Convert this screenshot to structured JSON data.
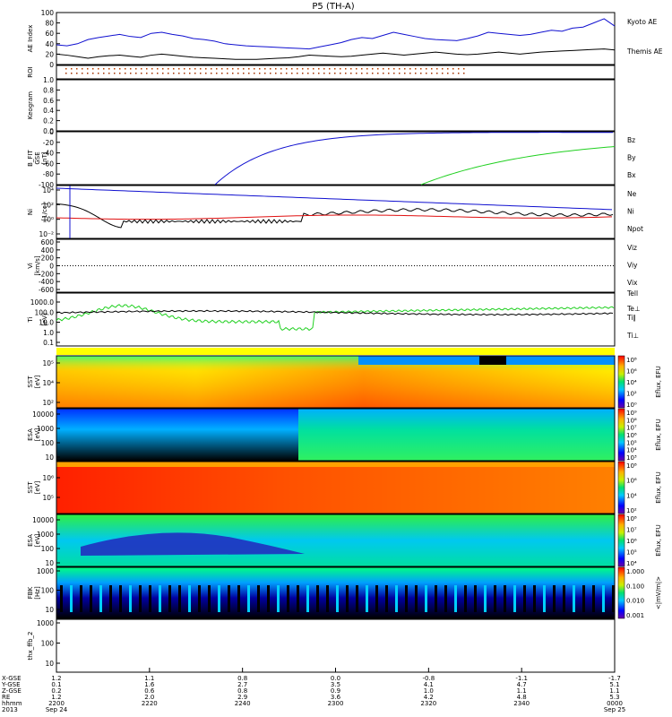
{
  "title": "P5 (TH-A)",
  "colors": {
    "blue": "#1010d0",
    "red": "#e01010",
    "green": "#20d020",
    "black": "#000000"
  },
  "chart_data": {
    "type": "line",
    "time_axis": {
      "ticks": [
        "2200",
        "2220",
        "2240",
        "2300",
        "2320",
        "2340",
        "0000"
      ],
      "labels_left": [
        "X-GSE",
        "Y-GSE",
        "Z-GSE",
        "RE",
        "hhmm",
        "2013"
      ],
      "rows": [
        [
          "1.2",
          "1.1",
          "0.8",
          "0.0",
          "-0.8",
          "-1.1",
          "-1.7"
        ],
        [
          "0.1",
          "1.6",
          "2.7",
          "3.5",
          "4.1",
          "4.7",
          "5.1"
        ],
        [
          "0.2",
          "0.6",
          "0.8",
          "0.9",
          "1.0",
          "1.1",
          "1.1"
        ],
        [
          "1.2",
          "2.0",
          "2.9",
          "3.6",
          "4.2",
          "4.8",
          "5.3"
        ]
      ],
      "date_start": "Sep 24",
      "date_end": "Sep 25"
    },
    "panels": [
      {
        "id": "ae",
        "ylabel": "AE Index",
        "yticks": [
          "100",
          "80",
          "60",
          "40",
          "20",
          "0"
        ],
        "series": [
          {
            "name": "Kyoto AE",
            "color": "#1010d0",
            "values": [
              38,
              36,
              40,
              48,
              52,
              55,
              58,
              54,
              52,
              60,
              62,
              58,
              55,
              50,
              48,
              45,
              40,
              38,
              36,
              35,
              34,
              33,
              32,
              31,
              30,
              34,
              38,
              42,
              48,
              52,
              50,
              56,
              62,
              58,
              54,
              50,
              48,
              47,
              46,
              50,
              55,
              62,
              60,
              58,
              56,
              58,
              62,
              66,
              64,
              70,
              72,
              80,
              88,
              74
            ]
          },
          {
            "name": "Themis AE",
            "color": "#000000",
            "values": [
              20,
              18,
              15,
              12,
              15,
              17,
              18,
              16,
              14,
              18,
              20,
              18,
              16,
              14,
              13,
              12,
              11,
              10,
              10,
              10,
              11,
              12,
              13,
              15,
              18,
              17,
              16,
              15,
              16,
              18,
              20,
              22,
              20,
              18,
              20,
              22,
              24,
              22,
              20,
              19,
              20,
              22,
              24,
              22,
              20,
              22,
              24,
              25,
              26,
              27,
              28,
              29,
              30,
              28
            ]
          }
        ]
      },
      {
        "id": "roi",
        "ylabel": "ROI"
      },
      {
        "id": "keogram",
        "ylabel": "Keogram",
        "yticks": [
          "1.0",
          "0.8",
          "0.6",
          "0.4",
          "0.2",
          "0.0"
        ]
      },
      {
        "id": "bfit",
        "ylabel": "B_FIT",
        "ylabel2": "GSE",
        "ylabel3": "[nT]",
        "yticks": [
          "0",
          "-20",
          "-40",
          "-60",
          "-80",
          "-100"
        ],
        "series": [
          {
            "name": "Bz",
            "color": "#e01010"
          },
          {
            "name": "By",
            "color": "#20d020"
          },
          {
            "name": "Bx",
            "color": "#1010d0"
          }
        ]
      },
      {
        "id": "ni",
        "ylabel": "Ni",
        "ylabel2": "[1/cc]",
        "yticks": [
          "10⁴",
          "10²",
          "10⁰",
          "10⁻²"
        ],
        "series": [
          {
            "name": "Ne",
            "color": "#e01010"
          },
          {
            "name": "Ni",
            "color": "#000000"
          },
          {
            "name": "Npot",
            "color": "#1010d0"
          }
        ]
      },
      {
        "id": "vi",
        "ylabel": "Vi",
        "ylabel2": "[km/s]",
        "yticks": [
          "600",
          "400",
          "200",
          "0",
          "-200",
          "-400",
          "-600"
        ],
        "series": [
          {
            "name": "Viz",
            "color": "#e01010"
          },
          {
            "name": "Viy",
            "color": "#20d020"
          },
          {
            "name": "Vix",
            "color": "#1010d0"
          }
        ]
      },
      {
        "id": "ti",
        "ylabel": "Ti",
        "ylabel2": "[eV]",
        "yticks": [
          "1000.0",
          "100.0",
          "10.0",
          "1.0",
          "0.1"
        ],
        "series": [
          {
            "name": "Tell",
            "color": "#000000"
          },
          {
            "name": "Te⊥",
            "color": "#e01010"
          },
          {
            "name": "Ti∥",
            "color": "#20d020"
          },
          {
            "name": "Ti⊥",
            "color": "#1010d0"
          }
        ]
      },
      {
        "id": "sst_e",
        "ylabel": "SST",
        "ylabel2": "[eV]",
        "yticks": [
          "10⁵",
          "10⁴",
          "10²"
        ],
        "colorbar": [
          "10⁸",
          "10⁶",
          "10⁴",
          "10²",
          "10⁰"
        ],
        "cblabel": "Eflux, EFU"
      },
      {
        "id": "esa_e",
        "ylabel": "ESA",
        "ylabel2": "[eV]",
        "yticks": [
          "10000",
          "1000",
          "100",
          "10"
        ],
        "colorbar": [
          "10⁹",
          "10⁸",
          "10⁷",
          "10⁶",
          "10⁵",
          "10⁴",
          "10³"
        ],
        "cblabel": "Eflux, EFU"
      },
      {
        "id": "sst_i",
        "ylabel": "SST",
        "ylabel2": "[eV]",
        "yticks": [
          "10⁶",
          "10⁵"
        ],
        "colorbar": [
          "10⁸",
          "10⁶",
          "10⁴",
          "10²"
        ],
        "cblabel": "Eflux, EFU"
      },
      {
        "id": "esa_i",
        "ylabel": "ESA",
        "ylabel2": "[eV]",
        "yticks": [
          "10000",
          "1000",
          "100",
          "10"
        ],
        "colorbar": [
          "10⁸",
          "10⁷",
          "10⁶",
          "10⁵",
          "10⁴"
        ],
        "cblabel": "Eflux, EFU"
      },
      {
        "id": "fbk",
        "ylabel": "FBK",
        "ylabel2": "[Hz]",
        "yticks": [
          "1000",
          "100",
          "10"
        ],
        "colorbar": [
          "1.000",
          "0.100",
          "0.010",
          "0.001"
        ],
        "cblabel": "<|mV/m|>"
      },
      {
        "id": "ffb",
        "ylabel": "thx_ffb_2",
        "yticks": [
          "1000",
          "100",
          "10"
        ]
      }
    ]
  }
}
